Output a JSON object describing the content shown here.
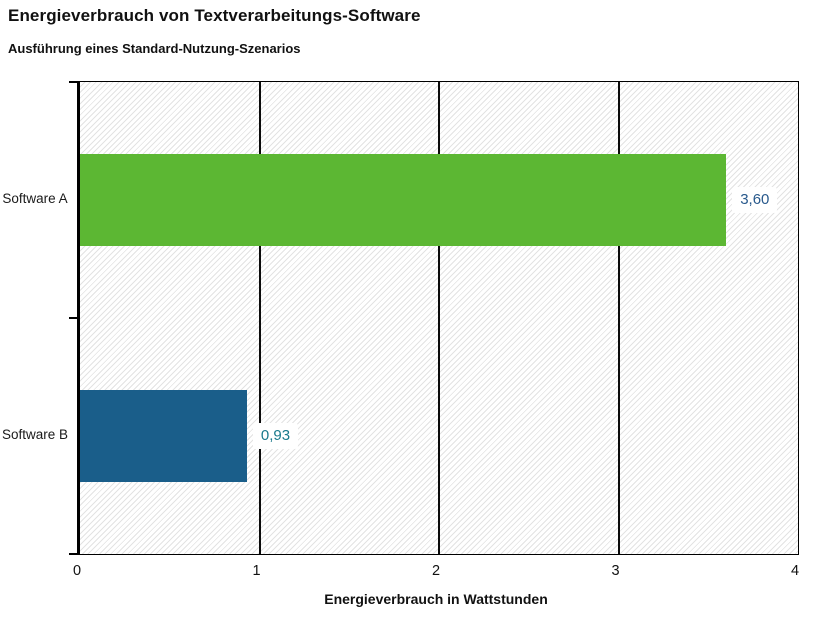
{
  "header": {
    "title": "Energieverbrauch von Textverarbeitungs-Software",
    "subtitle": "Ausführung eines Standard-Nutzung-Szenarios"
  },
  "chart_data": {
    "type": "bar",
    "orientation": "horizontal",
    "title": "Energieverbrauch von Textverarbeitungs-Software",
    "subtitle": "Ausführung eines Standard-Nutzung-Szenarios",
    "xlabel": "Energieverbrauch in Wattstunden",
    "ylabel": "",
    "categories": [
      "Software A",
      "Software B"
    ],
    "values": [
      3.6,
      0.93
    ],
    "value_labels": [
      "3,60",
      "0,93"
    ],
    "bar_colors": [
      "#5cb733",
      "#1a5e8a"
    ],
    "value_label_colors": [
      "#28598c",
      "#1a7a8c"
    ],
    "xlim": [
      0,
      4
    ],
    "x_tick_values": [
      0,
      1,
      2,
      3,
      4
    ],
    "x_tick_labels": [
      "0",
      "1",
      "2",
      "3",
      "4"
    ],
    "grid": "vertical gridlines at each x tick, drawn under bars",
    "legend": "none",
    "plot_background": "white with light gray diagonal hatching",
    "axis_color": "#000000",
    "gridline_color": "#0b0b0b",
    "hatch_color": "#e3e3e3"
  }
}
